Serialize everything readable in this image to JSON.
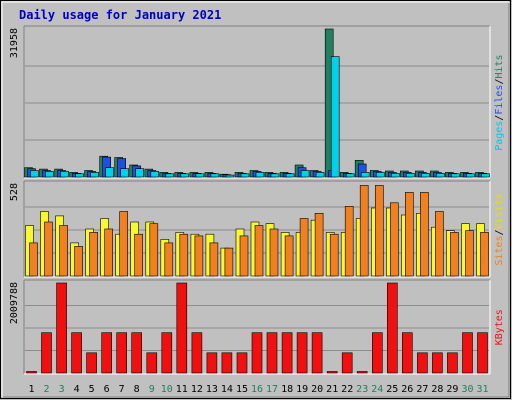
{
  "chart_data": {
    "type": "bar",
    "title": "Daily usage for January 2021",
    "categories": [
      "1",
      "2",
      "3",
      "4",
      "5",
      "6",
      "7",
      "8",
      "9",
      "10",
      "11",
      "12",
      "13",
      "14",
      "15",
      "16",
      "17",
      "18",
      "19",
      "20",
      "21",
      "22",
      "23",
      "24",
      "25",
      "26",
      "27",
      "28",
      "29",
      "30",
      "31"
    ],
    "weekend_days": [
      "2",
      "3",
      "9",
      "10",
      "16",
      "17",
      "23",
      "24",
      "30",
      "31"
    ],
    "colors": {
      "hits": "#208060",
      "files": "#2050e0",
      "pages": "#00d0e8",
      "visits": "#f8f830",
      "sites": "#f08020",
      "kbytes": "#f01010",
      "title": "#0000c0",
      "weekday_label": "#000000",
      "weekend_label": "#208060",
      "frame": "#c0c0c0"
    },
    "panels": [
      {
        "id": "top",
        "max_label": "31958",
        "ymax": 31958,
        "legend": [
          {
            "text": "Pages",
            "color": "#00c8e0"
          },
          {
            "text": "/",
            "color": "#000000"
          },
          {
            "text": "Files",
            "color": "#2050e0"
          },
          {
            "text": "/",
            "color": "#000000"
          },
          {
            "text": "Hits",
            "color": "#208060"
          }
        ],
        "series": [
          {
            "name": "Hits",
            "color": "#208060",
            "values": [
              2000,
              1700,
              1700,
              1000,
              1400,
              4500,
              4200,
              2600,
              1700,
              1000,
              1000,
              1000,
              1000,
              600,
              1000,
              1400,
              1000,
              1000,
              2600,
              1400,
              31958,
              1000,
              3600,
              1400,
              1300,
              1300,
              1300,
              1300,
              1000,
              1000,
              1000
            ]
          },
          {
            "name": "Files",
            "color": "#2050e0",
            "values": [
              1800,
              1400,
              1400,
              800,
              1200,
              4300,
              4000,
              2400,
              1400,
              800,
              800,
              800,
              800,
              500,
              800,
              1200,
              800,
              800,
              2000,
              1200,
              1400,
              800,
              2800,
              1200,
              1000,
              1000,
              1000,
              1000,
              800,
              800,
              800
            ]
          },
          {
            "name": "Pages",
            "color": "#00d0e8",
            "values": [
              1400,
              1200,
              1200,
              700,
              1000,
              2000,
              1800,
              1800,
              1200,
              700,
              700,
              700,
              700,
              400,
              700,
              1000,
              700,
              700,
              1400,
              1000,
              26000,
              700,
              1000,
              1000,
              800,
              800,
              800,
              800,
              700,
              700,
              700
            ]
          }
        ]
      },
      {
        "id": "middle",
        "max_label": "528",
        "ymax": 528,
        "legend": [
          {
            "text": "Sites",
            "color": "#f08020"
          },
          {
            "text": "/",
            "color": "#000000"
          },
          {
            "text": "Visits",
            "color": "#e8e000"
          }
        ],
        "series": [
          {
            "name": "Visits",
            "color": "#f8f830",
            "values": [
              290,
              370,
              345,
              190,
              270,
              330,
              240,
              310,
              310,
              210,
              250,
              240,
              240,
              160,
              270,
              310,
              300,
              250,
              250,
              320,
              250,
              250,
              330,
              390,
              390,
              350,
              360,
              280,
              260,
              300,
              300
            ]
          },
          {
            "name": "Sites",
            "color": "#f08020",
            "values": [
              190,
              310,
              290,
              170,
              250,
              270,
              370,
              240,
              300,
              190,
              240,
              230,
              190,
              160,
              230,
              290,
              270,
              230,
              330,
              360,
              240,
              400,
              520,
              520,
              420,
              480,
              480,
              370,
              250,
              260,
              250
            ]
          }
        ]
      },
      {
        "id": "bottom",
        "max_label": "2009788",
        "ymax": 2009788,
        "legend": [
          {
            "text": "KBytes",
            "color": "#f01010"
          }
        ],
        "series": [
          {
            "name": "KBytes",
            "color": "#f01010",
            "values": [
              0,
              900000,
              2009788,
              900000,
              450000,
              900000,
              900000,
              900000,
              450000,
              900000,
              2009788,
              900000,
              450000,
              450000,
              450000,
              900000,
              900000,
              900000,
              900000,
              900000,
              0,
              450000,
              0,
              900000,
              2009788,
              900000,
              450000,
              450000,
              450000,
              900000,
              900000
            ]
          }
        ]
      }
    ]
  }
}
